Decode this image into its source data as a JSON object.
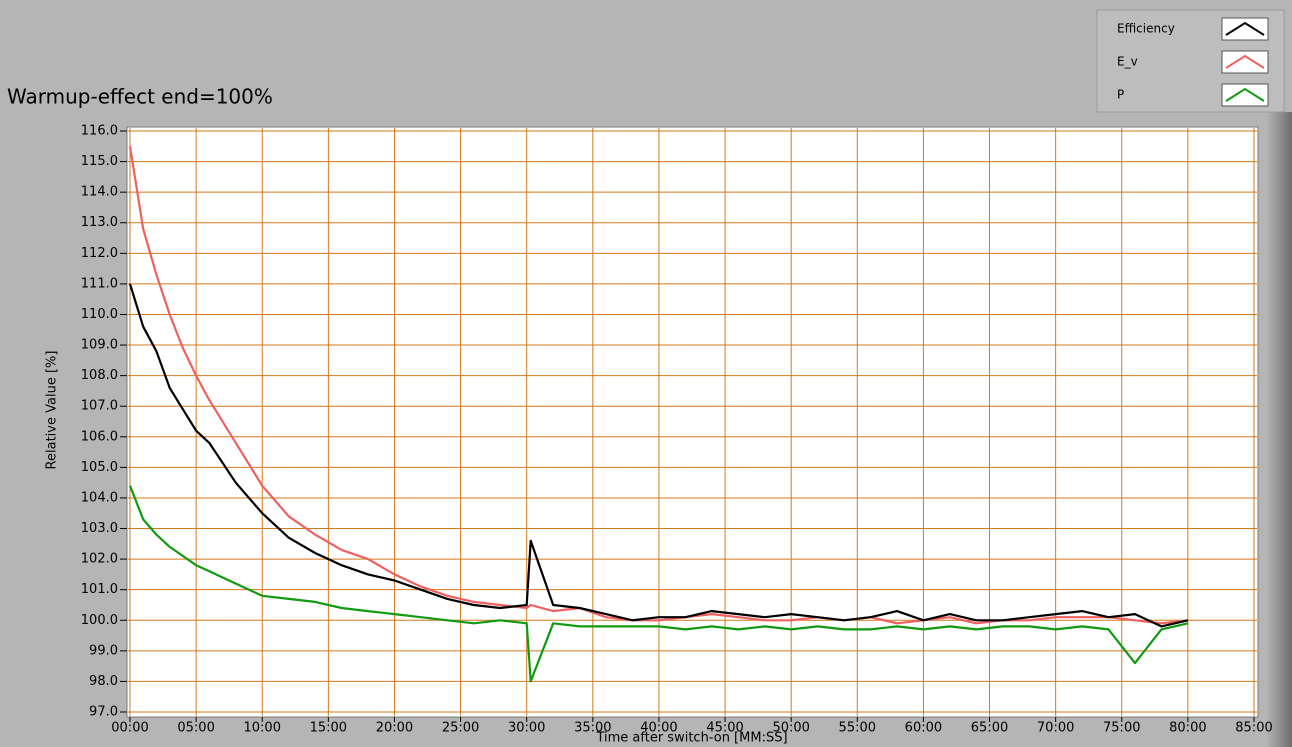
{
  "chart_data": {
    "type": "line",
    "title": "Warmup-effect end=100%",
    "x_label": "Time after switch-on [MM:SS]",
    "y_label": "Relative Value [%]",
    "grid": true,
    "grid_color": "#d2791a",
    "legend_position": "top-right",
    "xlim": [
      0,
      85
    ],
    "ylim": [
      97,
      116
    ],
    "xticks": [
      {
        "value": 0,
        "label": "00:00"
      },
      {
        "value": 5,
        "label": "05:00"
      },
      {
        "value": 10,
        "label": "10:00"
      },
      {
        "value": 15,
        "label": "15:00"
      },
      {
        "value": 20,
        "label": "20:00"
      },
      {
        "value": 25,
        "label": "25:00"
      },
      {
        "value": 30,
        "label": "30:00"
      },
      {
        "value": 35,
        "label": "35:00"
      },
      {
        "value": 40,
        "label": "40:00"
      },
      {
        "value": 45,
        "label": "45:00"
      },
      {
        "value": 50,
        "label": "50:00"
      },
      {
        "value": 55,
        "label": "55:00"
      },
      {
        "value": 60,
        "label": "60:00"
      },
      {
        "value": 65,
        "label": "65:00"
      },
      {
        "value": 70,
        "label": "70:00"
      },
      {
        "value": 75,
        "label": "75:00"
      },
      {
        "value": 80,
        "label": "80:00"
      },
      {
        "value": 85,
        "label": "85:00"
      }
    ],
    "yticks": [
      {
        "value": 97,
        "label": "97.0"
      },
      {
        "value": 98,
        "label": "98.0"
      },
      {
        "value": 99,
        "label": "99.0"
      },
      {
        "value": 100,
        "label": "100.0"
      },
      {
        "value": 101,
        "label": "101.0"
      },
      {
        "value": 102,
        "label": "102.0"
      },
      {
        "value": 103,
        "label": "103.0"
      },
      {
        "value": 104,
        "label": "104.0"
      },
      {
        "value": 105,
        "label": "105.0"
      },
      {
        "value": 106,
        "label": "106.0"
      },
      {
        "value": 107,
        "label": "107.0"
      },
      {
        "value": 108,
        "label": "108.0"
      },
      {
        "value": 109,
        "label": "109.0"
      },
      {
        "value": 110,
        "label": "110.0"
      },
      {
        "value": 111,
        "label": "111.0"
      },
      {
        "value": 112,
        "label": "112.0"
      },
      {
        "value": 113,
        "label": "113.0"
      },
      {
        "value": 114,
        "label": "114.0"
      },
      {
        "value": 115,
        "label": "115.0"
      },
      {
        "value": 116,
        "label": "116.0"
      }
    ],
    "x": [
      0,
      1,
      2,
      3,
      4,
      5,
      6,
      8,
      10,
      12,
      14,
      16,
      18,
      20,
      22,
      24,
      26,
      28,
      30,
      30.3,
      32,
      34,
      36,
      38,
      40,
      42,
      44,
      46,
      48,
      50,
      52,
      54,
      56,
      58,
      60,
      62,
      64,
      66,
      68,
      70,
      72,
      74,
      76,
      78,
      80
    ],
    "series": [
      {
        "name": "E_v",
        "color": "#f06060",
        "values": [
          115.5,
          112.8,
          111.3,
          110.0,
          108.9,
          108.0,
          107.2,
          105.8,
          104.4,
          103.4,
          102.8,
          102.3,
          102.0,
          101.5,
          101.1,
          100.8,
          100.6,
          100.5,
          100.4,
          100.5,
          100.3,
          100.4,
          100.1,
          100.0,
          100.0,
          100.1,
          100.2,
          100.1,
          100.0,
          100.0,
          100.1,
          100.0,
          100.1,
          99.9,
          100.0,
          100.1,
          99.9,
          100.0,
          100.0,
          100.1,
          100.1,
          100.1,
          100.0,
          99.9,
          100.0
        ]
      },
      {
        "name": "P",
        "color": "#109a10",
        "values": [
          104.4,
          103.3,
          102.8,
          102.4,
          102.1,
          101.8,
          101.6,
          101.2,
          100.8,
          100.7,
          100.6,
          100.4,
          100.3,
          100.2,
          100.1,
          100.0,
          99.9,
          100.0,
          99.9,
          98.0,
          99.9,
          99.8,
          99.8,
          99.8,
          99.8,
          99.7,
          99.8,
          99.7,
          99.8,
          99.7,
          99.8,
          99.7,
          99.7,
          99.8,
          99.7,
          99.8,
          99.7,
          99.8,
          99.8,
          99.7,
          99.8,
          99.7,
          98.6,
          99.7,
          99.9
        ]
      },
      {
        "name": "Efficiency",
        "color": "#000000",
        "values": [
          111.0,
          109.6,
          108.8,
          107.6,
          106.9,
          106.2,
          105.8,
          104.5,
          103.5,
          102.7,
          102.2,
          101.8,
          101.5,
          101.3,
          101.0,
          100.7,
          100.5,
          100.4,
          100.5,
          102.6,
          100.5,
          100.4,
          100.2,
          100.0,
          100.1,
          100.1,
          100.3,
          100.2,
          100.1,
          100.2,
          100.1,
          100.0,
          100.1,
          100.3,
          100.0,
          100.2,
          100.0,
          100.0,
          100.1,
          100.2,
          100.3,
          100.1,
          100.2,
          99.8,
          100.0
        ]
      }
    ],
    "legend_order": [
      "Efficiency",
      "E_v",
      "P"
    ]
  }
}
